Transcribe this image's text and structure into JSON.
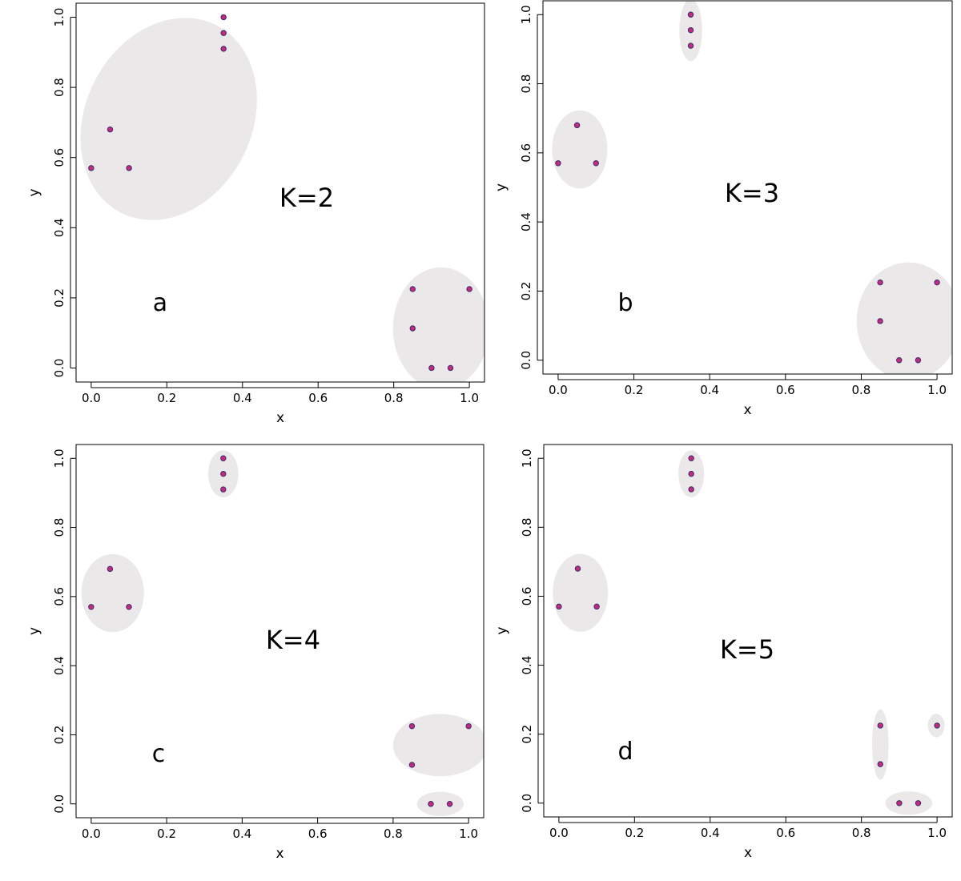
{
  "chart_data": [
    {
      "type": "scatter",
      "panel_letter": "a",
      "annotation": "K=2",
      "xlabel": "x",
      "ylabel": "y",
      "xlim": [
        -0.04,
        1.04
      ],
      "ylim": [
        -0.04,
        1.04
      ],
      "x_ticks": [
        "0.0",
        "0.2",
        "0.4",
        "0.6",
        "0.8",
        "1.0"
      ],
      "y_ticks": [
        "0.0",
        "0.2",
        "0.4",
        "0.6",
        "0.8",
        "1.0"
      ],
      "points": [
        {
          "x": 0.0,
          "y": 0.57
        },
        {
          "x": 0.05,
          "y": 0.68
        },
        {
          "x": 0.1,
          "y": 0.57
        },
        {
          "x": 0.35,
          "y": 1.0
        },
        {
          "x": 0.35,
          "y": 0.955
        },
        {
          "x": 0.35,
          "y": 0.91
        },
        {
          "x": 0.85,
          "y": 0.225
        },
        {
          "x": 1.0,
          "y": 0.225
        },
        {
          "x": 0.85,
          "y": 0.113
        },
        {
          "x": 0.9,
          "y": 0.0
        },
        {
          "x": 0.95,
          "y": 0.0
        }
      ],
      "clusters": [
        {
          "cx": 0.205,
          "cy": 0.71,
          "rx": 0.22,
          "ry": 0.3,
          "rotate": 27
        },
        {
          "cx": 0.925,
          "cy": 0.113,
          "rx": 0.127,
          "ry": 0.174,
          "rotate": 0
        }
      ]
    },
    {
      "type": "scatter",
      "panel_letter": "b",
      "annotation": "K=3",
      "xlabel": "x",
      "ylabel": "y",
      "xlim": [
        -0.04,
        1.04
      ],
      "ylim": [
        -0.04,
        1.04
      ],
      "x_ticks": [
        "0.0",
        "0.2",
        "0.4",
        "0.6",
        "0.8",
        "1.0"
      ],
      "y_ticks": [
        "0.0",
        "0.2",
        "0.4",
        "0.6",
        "0.8",
        "1.0"
      ],
      "points": [
        {
          "x": 0.0,
          "y": 0.57
        },
        {
          "x": 0.05,
          "y": 0.68
        },
        {
          "x": 0.1,
          "y": 0.57
        },
        {
          "x": 0.35,
          "y": 1.0
        },
        {
          "x": 0.35,
          "y": 0.955
        },
        {
          "x": 0.35,
          "y": 0.91
        },
        {
          "x": 0.85,
          "y": 0.225
        },
        {
          "x": 1.0,
          "y": 0.225
        },
        {
          "x": 0.85,
          "y": 0.113
        },
        {
          "x": 0.9,
          "y": 0.0
        },
        {
          "x": 0.95,
          "y": 0.0
        }
      ],
      "clusters": [
        {
          "cx": 0.057,
          "cy": 0.61,
          "rx": 0.073,
          "ry": 0.113,
          "rotate": 0
        },
        {
          "cx": 0.35,
          "cy": 0.955,
          "rx": 0.03,
          "ry": 0.09,
          "rotate": 0
        },
        {
          "cx": 0.925,
          "cy": 0.113,
          "rx": 0.137,
          "ry": 0.17,
          "rotate": 0
        }
      ]
    },
    {
      "type": "scatter",
      "panel_letter": "c",
      "annotation": "K=4",
      "xlabel": "x",
      "ylabel": "y",
      "xlim": [
        -0.04,
        1.04
      ],
      "ylim": [
        -0.04,
        1.04
      ],
      "x_ticks": [
        "0.0",
        "0.2",
        "0.4",
        "0.6",
        "0.8",
        "1.0"
      ],
      "y_ticks": [
        "0.0",
        "0.2",
        "0.4",
        "0.6",
        "0.8",
        "1.0"
      ],
      "points": [
        {
          "x": 0.0,
          "y": 0.57
        },
        {
          "x": 0.05,
          "y": 0.68
        },
        {
          "x": 0.1,
          "y": 0.57
        },
        {
          "x": 0.35,
          "y": 1.0
        },
        {
          "x": 0.35,
          "y": 0.955
        },
        {
          "x": 0.35,
          "y": 0.91
        },
        {
          "x": 0.85,
          "y": 0.225
        },
        {
          "x": 1.0,
          "y": 0.225
        },
        {
          "x": 0.85,
          "y": 0.113
        },
        {
          "x": 0.9,
          "y": 0.0
        },
        {
          "x": 0.95,
          "y": 0.0
        }
      ],
      "clusters": [
        {
          "cx": 0.057,
          "cy": 0.61,
          "rx": 0.083,
          "ry": 0.113,
          "rotate": 0
        },
        {
          "cx": 0.35,
          "cy": 0.955,
          "rx": 0.04,
          "ry": 0.068,
          "rotate": 0
        },
        {
          "cx": 0.925,
          "cy": 0.17,
          "rx": 0.125,
          "ry": 0.09,
          "rotate": 0
        },
        {
          "cx": 0.925,
          "cy": 0.0,
          "rx": 0.062,
          "ry": 0.035,
          "rotate": 0
        }
      ]
    },
    {
      "type": "scatter",
      "panel_letter": "d",
      "annotation": "K=5",
      "xlabel": "x",
      "ylabel": "y",
      "xlim": [
        -0.04,
        1.04
      ],
      "ylim": [
        -0.04,
        1.04
      ],
      "x_ticks": [
        "0.0",
        "0.2",
        "0.4",
        "0.6",
        "0.8",
        "1.0"
      ],
      "y_ticks": [
        "0.0",
        "0.2",
        "0.4",
        "0.6",
        "0.8",
        "1.0"
      ],
      "points": [
        {
          "x": 0.0,
          "y": 0.57
        },
        {
          "x": 0.05,
          "y": 0.68
        },
        {
          "x": 0.1,
          "y": 0.57
        },
        {
          "x": 0.35,
          "y": 1.0
        },
        {
          "x": 0.35,
          "y": 0.955
        },
        {
          "x": 0.35,
          "y": 0.91
        },
        {
          "x": 0.85,
          "y": 0.225
        },
        {
          "x": 1.0,
          "y": 0.225
        },
        {
          "x": 0.85,
          "y": 0.113
        },
        {
          "x": 0.9,
          "y": 0.0
        },
        {
          "x": 0.95,
          "y": 0.0
        }
      ],
      "clusters": [
        {
          "cx": 0.057,
          "cy": 0.61,
          "rx": 0.073,
          "ry": 0.113,
          "rotate": 0
        },
        {
          "cx": 0.35,
          "cy": 0.955,
          "rx": 0.034,
          "ry": 0.068,
          "rotate": 0
        },
        {
          "cx": 0.85,
          "cy": 0.17,
          "rx": 0.022,
          "ry": 0.102,
          "rotate": 0
        },
        {
          "cx": 0.998,
          "cy": 0.225,
          "rx": 0.022,
          "ry": 0.034,
          "rotate": 0
        },
        {
          "cx": 0.925,
          "cy": 0.0,
          "rx": 0.062,
          "ry": 0.034,
          "rotate": 0
        }
      ]
    }
  ]
}
